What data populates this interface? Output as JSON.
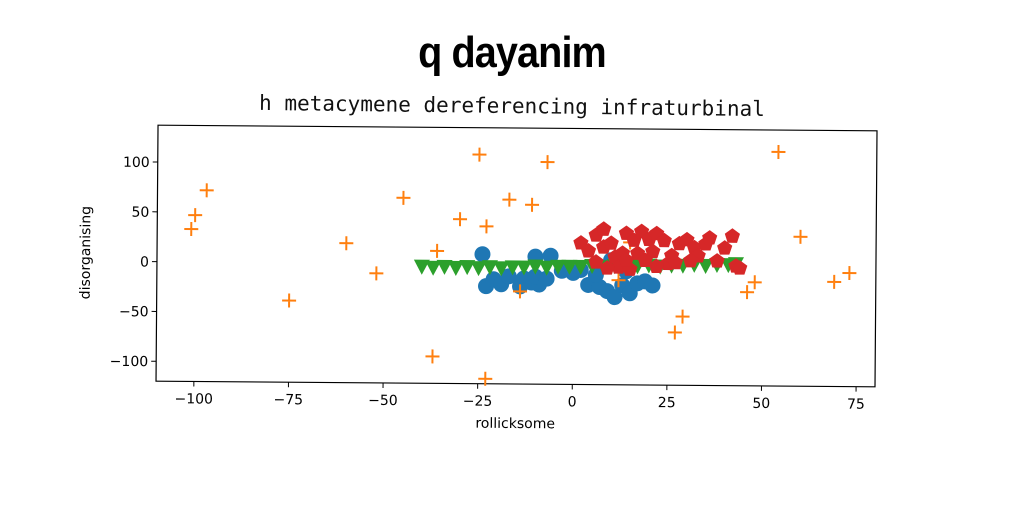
{
  "title": "q dayanim",
  "chart_data": {
    "type": "scatter",
    "title": "h metacymene dereferencing infraturbinal",
    "xlabel": "rollicksome",
    "ylabel": "disorganising",
    "xlim": [
      -110,
      80
    ],
    "ylim": [
      -120,
      137
    ],
    "xticks": [
      -100,
      -75,
      -50,
      -25,
      0,
      25,
      50,
      75
    ],
    "xtick_labels": [
      "−100",
      "−75",
      "−50",
      "−25",
      "0",
      "25",
      "50",
      "75"
    ],
    "yticks": [
      100,
      50,
      0,
      -50,
      -100
    ],
    "ytick_labels": [
      "100",
      "50",
      "0",
      "−50",
      "−100"
    ],
    "grid": false,
    "series": [
      {
        "marker": "circle",
        "color": "#1f77b4",
        "points": [
          [
            -23,
            -22
          ],
          [
            -21,
            -15
          ],
          [
            -19,
            -20
          ],
          [
            -17,
            -12
          ],
          [
            -14,
            -22
          ],
          [
            -13,
            -14
          ],
          [
            -11,
            -18
          ],
          [
            -9,
            -20
          ],
          [
            -10,
            -12
          ],
          [
            -7,
            -14
          ],
          [
            -24,
            10
          ],
          [
            -10,
            8
          ],
          [
            -6,
            9
          ],
          [
            -3,
            -6
          ],
          [
            0,
            -8
          ],
          [
            4,
            -20
          ],
          [
            7,
            -22
          ],
          [
            9,
            -26
          ],
          [
            11,
            -32
          ],
          [
            13,
            -20
          ],
          [
            15,
            -28
          ],
          [
            17,
            -18
          ],
          [
            19,
            -16
          ],
          [
            21,
            -20
          ],
          [
            10,
            5
          ],
          [
            14,
            -6
          ],
          [
            6,
            -10
          ],
          [
            2,
            -5
          ]
        ]
      },
      {
        "marker": "plus",
        "color": "#ff7f0e",
        "points": [
          [
            -100,
            47
          ],
          [
            -101,
            33
          ],
          [
            -97,
            72
          ],
          [
            -75,
            -38
          ],
          [
            -60,
            20
          ],
          [
            -52,
            -10
          ],
          [
            -45,
            66
          ],
          [
            -36,
            13
          ],
          [
            -37,
            -93
          ],
          [
            -30,
            45
          ],
          [
            -25,
            110
          ],
          [
            -23,
            38
          ],
          [
            -23,
            -115
          ],
          [
            -17,
            65
          ],
          [
            -11,
            60
          ],
          [
            -7,
            103
          ],
          [
            -14,
            -27
          ],
          [
            12,
            -15
          ],
          [
            15,
            23
          ],
          [
            27,
            -67
          ],
          [
            29,
            -51
          ],
          [
            46,
            -26
          ],
          [
            48,
            -16
          ],
          [
            54,
            115
          ],
          [
            60,
            30
          ],
          [
            69,
            -15
          ],
          [
            73,
            -6
          ]
        ]
      },
      {
        "marker": "triangle",
        "color": "#2ca02c",
        "points": [
          [
            -40,
            -3
          ],
          [
            -37,
            -4
          ],
          [
            -34,
            -3
          ],
          [
            -31,
            -4
          ],
          [
            -28,
            -3
          ],
          [
            -25,
            -4
          ],
          [
            -22,
            -3
          ],
          [
            -19,
            -4
          ],
          [
            -16,
            -3
          ],
          [
            -13,
            -3
          ],
          [
            -10,
            -2
          ],
          [
            -7,
            -3
          ],
          [
            -4,
            -2
          ],
          [
            -1,
            -2
          ],
          [
            2,
            -2
          ],
          [
            5,
            -1
          ],
          [
            8,
            -2
          ],
          [
            11,
            -1
          ],
          [
            14,
            -1
          ],
          [
            17,
            -1
          ],
          [
            20,
            0
          ],
          [
            23,
            -1
          ],
          [
            26,
            0
          ],
          [
            29,
            0
          ],
          [
            32,
            1
          ],
          [
            35,
            0
          ],
          [
            38,
            1
          ],
          [
            41,
            1
          ],
          [
            43,
            2
          ]
        ]
      },
      {
        "marker": "pentagon",
        "color": "#d62728",
        "points": [
          [
            2,
            22
          ],
          [
            4,
            14
          ],
          [
            6,
            30
          ],
          [
            8,
            36
          ],
          [
            8,
            18
          ],
          [
            10,
            22
          ],
          [
            11,
            8
          ],
          [
            13,
            12
          ],
          [
            14,
            32
          ],
          [
            16,
            25
          ],
          [
            17,
            12
          ],
          [
            18,
            34
          ],
          [
            20,
            26
          ],
          [
            21,
            14
          ],
          [
            22,
            32
          ],
          [
            24,
            25
          ],
          [
            25,
            2
          ],
          [
            26,
            10
          ],
          [
            28,
            22
          ],
          [
            30,
            26
          ],
          [
            32,
            18
          ],
          [
            33,
            10
          ],
          [
            35,
            22
          ],
          [
            36,
            28
          ],
          [
            38,
            5
          ],
          [
            40,
            18
          ],
          [
            42,
            30
          ],
          [
            43,
            0
          ],
          [
            44,
            -2
          ],
          [
            12,
            -2
          ],
          [
            15,
            -4
          ],
          [
            19,
            5
          ],
          [
            22,
            -1
          ],
          [
            27,
            3
          ],
          [
            6,
            3
          ],
          [
            9,
            -3
          ],
          [
            14,
            5
          ],
          [
            31,
            5
          ]
        ]
      }
    ]
  }
}
